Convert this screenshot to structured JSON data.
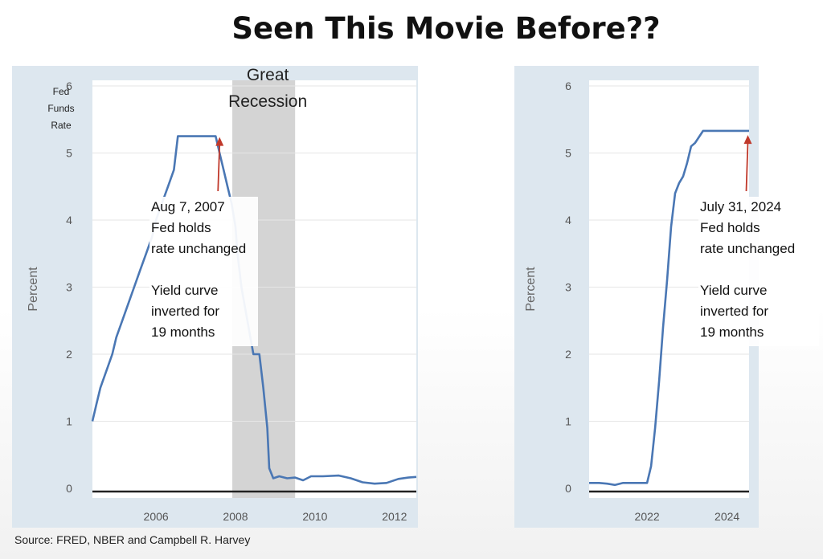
{
  "slide": {
    "title": "Seen This Movie Before??",
    "source": "Source: FRED, NBER and Campbell R. Harvey"
  },
  "colors": {
    "line": "#4a77b4",
    "arrow": "#c0392b",
    "panel": "#dde7ef",
    "recession": "#d4d4d4",
    "zero_line": "#222222"
  },
  "chart_data": [
    {
      "type": "line",
      "y_axis_note": "Fed Funds Rate",
      "ylabel": "Percent",
      "xlim": [
        2004.4,
        2012.55
      ],
      "ylim": [
        0,
        6
      ],
      "x_ticks": [
        2006,
        2008,
        2010,
        2012
      ],
      "y_ticks": [
        0,
        1,
        2,
        3,
        4,
        5,
        6
      ],
      "grid": true,
      "shaded_region": {
        "label": "Great Recession",
        "x": [
          2007.92,
          2009.5
        ]
      },
      "series": [
        {
          "x": [
            2004.4,
            2004.5,
            2004.6,
            2004.75,
            2004.9,
            2005.0,
            2005.15,
            2005.3,
            2005.45,
            2005.6,
            2005.75,
            2005.9,
            2006.0,
            2006.15,
            2006.3,
            2006.45,
            2006.55,
            2007.0,
            2007.5,
            2007.6,
            2007.7,
            2007.8,
            2007.9,
            2008.0,
            2008.05,
            2008.15,
            2008.3,
            2008.45,
            2008.55,
            2008.6,
            2008.7,
            2008.8,
            2008.85,
            2008.95,
            2009.1,
            2009.3,
            2009.5,
            2009.7,
            2009.9,
            2010.2,
            2010.6,
            2010.9,
            2011.2,
            2011.5,
            2011.8,
            2012.1,
            2012.35,
            2012.55
          ],
          "y": [
            1.0,
            1.25,
            1.5,
            1.75,
            2.0,
            2.25,
            2.5,
            2.75,
            3.0,
            3.25,
            3.5,
            3.75,
            4.0,
            4.25,
            4.5,
            4.75,
            5.25,
            5.25,
            5.25,
            5.0,
            4.75,
            4.5,
            4.25,
            3.9,
            3.5,
            3.0,
            2.5,
            2.0,
            2.0,
            2.0,
            1.5,
            0.9,
            0.3,
            0.15,
            0.18,
            0.15,
            0.16,
            0.12,
            0.18,
            0.18,
            0.19,
            0.15,
            0.09,
            0.07,
            0.08,
            0.14,
            0.16,
            0.17
          ]
        }
      ],
      "annotation": {
        "arrow_to": [
          2007.6,
          5.25
        ],
        "lines": [
          "Aug 7, 2007",
          "Fed holds",
          "rate unchanged",
          "",
          "Yield curve",
          "inverted for",
          "19 months"
        ]
      }
    },
    {
      "type": "line",
      "ylabel": "Percent",
      "xlim": [
        2020.55,
        2024.55
      ],
      "ylim": [
        0,
        6
      ],
      "x_ticks": [
        2022,
        2024
      ],
      "y_ticks": [
        0,
        1,
        2,
        3,
        4,
        5,
        6
      ],
      "grid": true,
      "series": [
        {
          "x": [
            2020.55,
            2020.8,
            2021.0,
            2021.2,
            2021.4,
            2021.6,
            2021.8,
            2022.0,
            2022.1,
            2022.2,
            2022.3,
            2022.4,
            2022.5,
            2022.6,
            2022.7,
            2022.8,
            2022.9,
            2023.0,
            2023.1,
            2023.2,
            2023.4,
            2023.55,
            2024.55
          ],
          "y": [
            0.08,
            0.08,
            0.07,
            0.05,
            0.08,
            0.08,
            0.08,
            0.08,
            0.33,
            0.9,
            1.6,
            2.4,
            3.1,
            3.9,
            4.4,
            4.55,
            4.65,
            4.85,
            5.1,
            5.15,
            5.33,
            5.33,
            5.33
          ]
        }
      ],
      "annotation": {
        "arrow_to": [
          2024.52,
          5.28
        ],
        "lines": [
          "July 31, 2024",
          "Fed holds",
          "rate unchanged",
          "",
          "Yield curve",
          "inverted for",
          "19 months"
        ]
      }
    }
  ]
}
